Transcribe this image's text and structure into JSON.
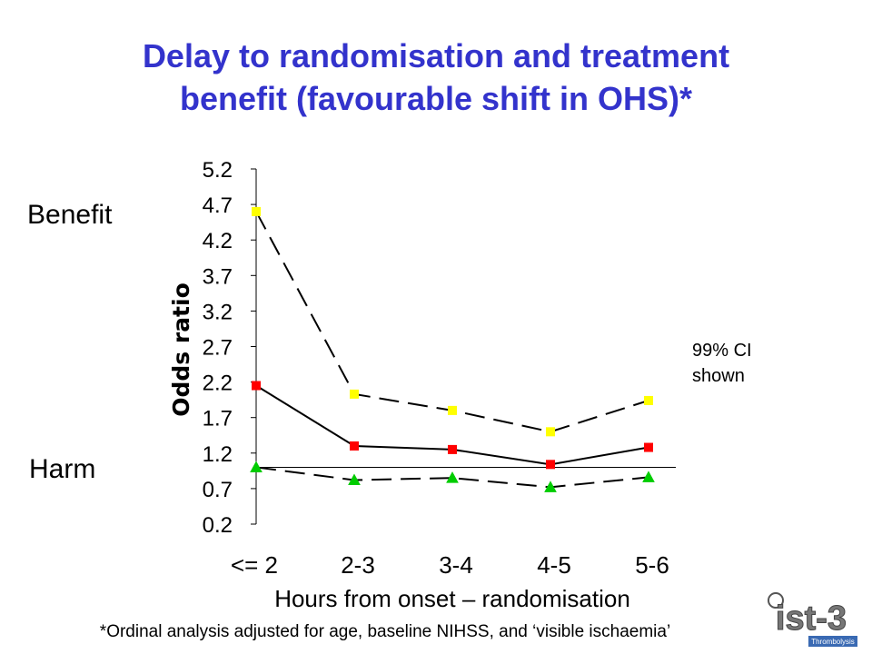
{
  "title_line1": "Delay to randomisation and treatment",
  "title_line2": "benefit (favourable shift in OHS)*",
  "benefit_label": "Benefit",
  "harm_label": "Harm",
  "ci_note_line1": "99% CI",
  "ci_note_line2": "shown",
  "footnote": "*Ordinal analysis adjusted for age, baseline NIHSS, and ‘visible ischaemia’",
  "logo_text": "ist-3",
  "logo_subtext": "Thrombolysis",
  "colors": {
    "title": "#3333cc",
    "upper_marker": "#ffff00",
    "estimate_marker": "#ff0000",
    "lower_marker": "#00cc00"
  },
  "chart_data": {
    "type": "line",
    "title": "",
    "xlabel": "Hours from onset – randomisation",
    "ylabel": "Odds ratio",
    "categories": [
      "<= 2",
      "2-3",
      "3-4",
      "4-5",
      "5-6"
    ],
    "yticks": [
      "5.2",
      "4.7",
      "4.2",
      "3.7",
      "3.2",
      "2.7",
      "2.2",
      "1.7",
      "1.2",
      "0.7",
      "0.2"
    ],
    "ylim": [
      0.2,
      5.2
    ],
    "reference_line": 1.0,
    "grid": false,
    "series": [
      {
        "role": "upper",
        "values": [
          4.6,
          2.03,
          1.8,
          1.5,
          1.94
        ],
        "line": "dashed",
        "marker": "square",
        "color": "#ffff00"
      },
      {
        "role": "estimate",
        "values": [
          2.15,
          1.3,
          1.25,
          1.04,
          1.28
        ],
        "line": "solid",
        "marker": "square",
        "color": "#ff0000"
      },
      {
        "role": "lower",
        "values": [
          1.0,
          0.82,
          0.85,
          0.72,
          0.86
        ],
        "line": "dashed",
        "marker": "triangle",
        "color": "#00cc00"
      }
    ]
  }
}
